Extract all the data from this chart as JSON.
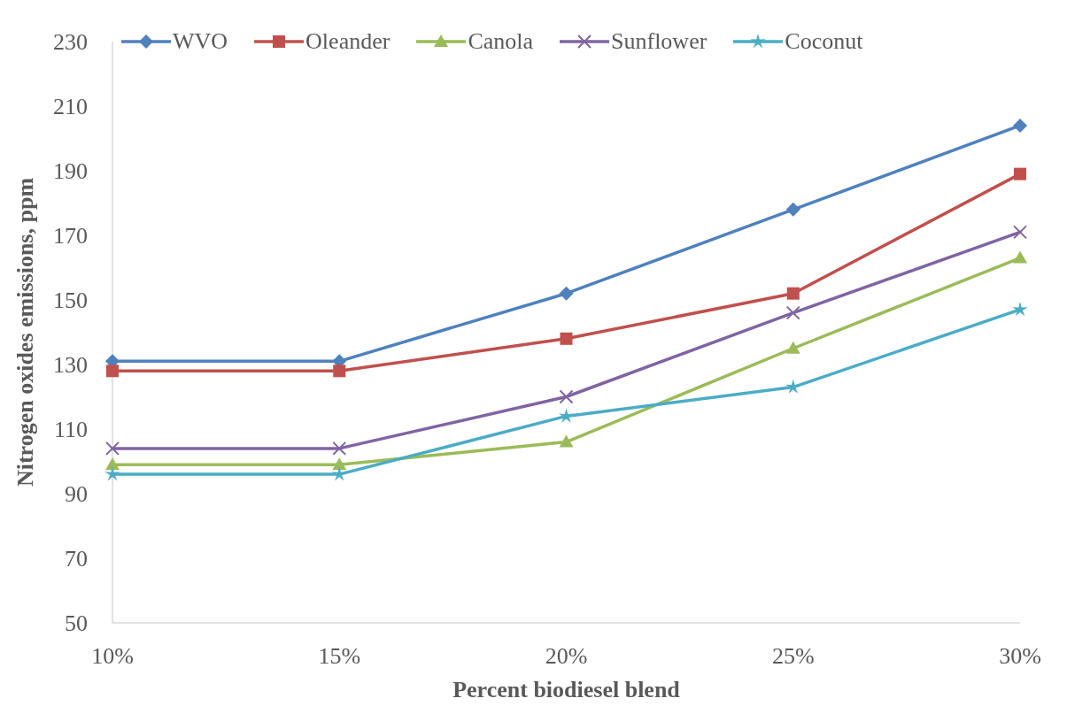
{
  "chart_data": {
    "type": "line",
    "xlabel": "Percent biodiesel blend",
    "ylabel": "Nitrogen oxides emissions, ppm",
    "categories": [
      "10%",
      "15%",
      "20%",
      "25%",
      "30%"
    ],
    "ylim": [
      50,
      230
    ],
    "yticks": [
      50,
      70,
      90,
      110,
      130,
      150,
      170,
      190,
      210,
      230
    ],
    "grid": false,
    "legend": "top",
    "line_style": "solid",
    "series": [
      {
        "name": "WVO",
        "color": "#4f81bd",
        "marker": "diamond",
        "values": [
          131,
          131,
          152,
          178,
          204
        ]
      },
      {
        "name": "Oleander",
        "color": "#c0504d",
        "marker": "square",
        "values": [
          128,
          128,
          138,
          152,
          189
        ]
      },
      {
        "name": "Canola",
        "color": "#9bbb59",
        "marker": "triangle",
        "values": [
          99,
          99,
          106,
          135,
          163
        ]
      },
      {
        "name": "Sunflower",
        "color": "#8064a2",
        "marker": "cross",
        "values": [
          104,
          104,
          120,
          146,
          171
        ]
      },
      {
        "name": "Coconut",
        "color": "#4bacc6",
        "marker": "star",
        "values": [
          96,
          96,
          114,
          123,
          147
        ]
      }
    ]
  }
}
